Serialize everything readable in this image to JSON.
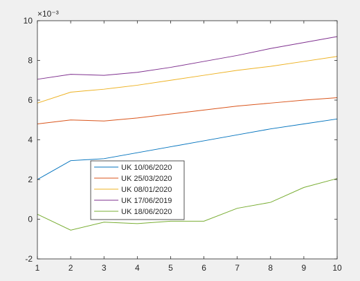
{
  "chart_data": {
    "type": "line",
    "title": "",
    "xlabel": "",
    "ylabel": "",
    "y_exponent_label": "×10⁻³",
    "xlim": [
      1,
      10
    ],
    "ylim": [
      -2,
      10
    ],
    "y_scale_factor": 0.001,
    "x_ticks": [
      1,
      2,
      3,
      4,
      5,
      6,
      7,
      8,
      9,
      10
    ],
    "y_ticks": [
      -2,
      0,
      2,
      4,
      6,
      8,
      10
    ],
    "grid": false,
    "legend_placement": "lower-left",
    "x": [
      1,
      2,
      3,
      4,
      5,
      6,
      7,
      8,
      9,
      10
    ],
    "series": [
      {
        "name": "UK 10/06/2020",
        "color": "#0072bd",
        "values": [
          2.0,
          2.95,
          3.05,
          3.35,
          3.65,
          3.95,
          4.25,
          4.55,
          4.8,
          5.05
        ]
      },
      {
        "name": "UK 25/03/2020",
        "color": "#d95319",
        "values": [
          4.8,
          5.0,
          4.95,
          5.1,
          5.3,
          5.5,
          5.7,
          5.85,
          6.0,
          6.12
        ]
      },
      {
        "name": "UK 08/01/2020",
        "color": "#edb120",
        "values": [
          5.85,
          6.4,
          6.55,
          6.75,
          7.0,
          7.25,
          7.5,
          7.7,
          7.95,
          8.2
        ]
      },
      {
        "name": "UK 17/06/2019",
        "color": "#7e2f8e",
        "values": [
          7.05,
          7.3,
          7.25,
          7.4,
          7.65,
          7.95,
          8.25,
          8.6,
          8.9,
          9.2
        ]
      },
      {
        "name": "UK 18/06/2020",
        "color": "#77ac30",
        "values": [
          0.25,
          -0.55,
          -0.15,
          -0.22,
          -0.1,
          -0.1,
          0.55,
          0.85,
          1.6,
          2.05
        ]
      }
    ]
  }
}
